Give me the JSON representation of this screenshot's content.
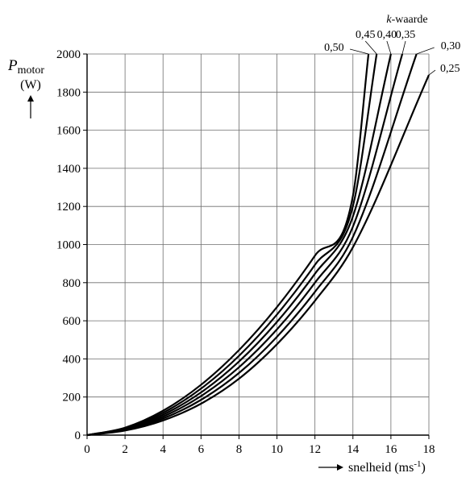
{
  "chart_data": {
    "type": "line",
    "title": "",
    "xlabel": "snelheid (ms",
    "xlabel_sup": "-1",
    "xlabel_close": ")",
    "ylabel_symbol": "P",
    "ylabel_sub": "motor",
    "ylabel_unit": "(W)",
    "legend_title_italic": "k",
    "legend_title_rest": "-waarde",
    "xlim": [
      0,
      18
    ],
    "ylim": [
      0,
      2000
    ],
    "x_ticks": [
      "0",
      "2",
      "4",
      "6",
      "8",
      "10",
      "12",
      "14",
      "16",
      "18"
    ],
    "y_ticks": [
      "0",
      "200",
      "400",
      "600",
      "800",
      "1000",
      "1200",
      "1400",
      "1600",
      "1800",
      "2000"
    ],
    "grid": true,
    "series": [
      {
        "name": "0,50",
        "k": 0.5,
        "x": [
          0,
          2,
          4,
          6,
          8,
          10,
          12,
          14,
          14.82
        ],
        "y": [
          0,
          39,
          128,
          264,
          446,
          672,
          942,
          1256,
          2000
        ]
      },
      {
        "name": "0,45",
        "k": 0.45,
        "x": [
          0,
          2,
          4,
          6,
          8,
          10,
          12,
          14,
          15.25
        ],
        "y": [
          0,
          36,
          117,
          244,
          416,
          633,
          894,
          1202,
          2000
        ]
      },
      {
        "name": "0,40",
        "k": 0.4,
        "x": [
          0,
          2,
          4,
          6,
          8,
          10,
          12,
          14,
          16.0
        ],
        "y": [
          0,
          33,
          107,
          224,
          386,
          594,
          847,
          1148,
          2000
        ]
      },
      {
        "name": "0,35",
        "k": 0.35,
        "x": [
          0,
          2,
          4,
          6,
          8,
          10,
          12,
          14,
          16.6
        ],
        "y": [
          0,
          30,
          97,
          205,
          356,
          555,
          800,
          1094,
          2000
        ]
      },
      {
        "name": "0,30",
        "k": 0.3,
        "x": [
          0,
          2,
          4,
          6,
          8,
          10,
          12,
          14,
          17.35
        ],
        "y": [
          0,
          27,
          87,
          185,
          326,
          516,
          752,
          1040,
          2000
        ]
      },
      {
        "name": "0,25",
        "k": 0.25,
        "x": [
          0,
          2,
          4,
          6,
          8,
          10,
          12,
          14,
          18.0
        ],
        "y": [
          0,
          24,
          77,
          165,
          296,
          477,
          705,
          986,
          1890
        ]
      }
    ]
  }
}
